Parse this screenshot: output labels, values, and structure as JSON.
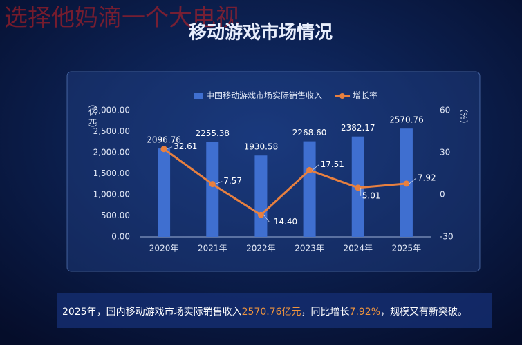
{
  "watermark": "选择他妈滴一个大电视",
  "chart_data": {
    "type": "bar-line",
    "title": "移动游戏市场情况",
    "y_label": "（亿元）",
    "y2_label": "（%）",
    "categories": [
      "2020年",
      "2021年",
      "2022年",
      "2023年",
      "2024年",
      "2025年"
    ],
    "series": [
      {
        "name": "中国移动游戏市场实际销售收入",
        "type": "bar",
        "color": "#3f6fd0",
        "values": [
          2096.76,
          2255.38,
          1930.58,
          2268.6,
          2382.17,
          2570.76
        ],
        "value_labels": [
          "2096.76",
          "2255.38",
          "1930.58",
          "2268.60",
          "2382.17",
          "2570.76"
        ]
      },
      {
        "name": "增长率",
        "type": "line",
        "axis": "y2",
        "color": "#e8803f",
        "values": [
          32.61,
          7.57,
          -14.4,
          17.51,
          5.01,
          7.92
        ],
        "value_labels": [
          "32.61",
          "7.57",
          "-14.40",
          "17.51",
          "5.01",
          "7.92"
        ]
      }
    ],
    "ylim": [
      0,
      3000
    ],
    "yticks": [
      {
        "value": 0,
        "label": "0.00"
      },
      {
        "value": 500,
        "label": "500.00"
      },
      {
        "value": 1000,
        "label": "1,000.00"
      },
      {
        "value": 1500,
        "label": "1,500.00"
      },
      {
        "value": 2000,
        "label": "2,000.00"
      },
      {
        "value": 2500,
        "label": "2,500.00"
      },
      {
        "value": 3000,
        "label": "3,000.00"
      }
    ],
    "y2lim": [
      -30,
      60
    ],
    "y2ticks": [
      -30,
      0,
      30,
      60
    ],
    "grid": false,
    "legend": "top"
  },
  "summary": {
    "parts": [
      "2025年，国内移动游戏市场实际销售收入",
      "2570.76亿元",
      "，同比增长",
      "7.92%",
      "，规模又有新突破。"
    ]
  }
}
